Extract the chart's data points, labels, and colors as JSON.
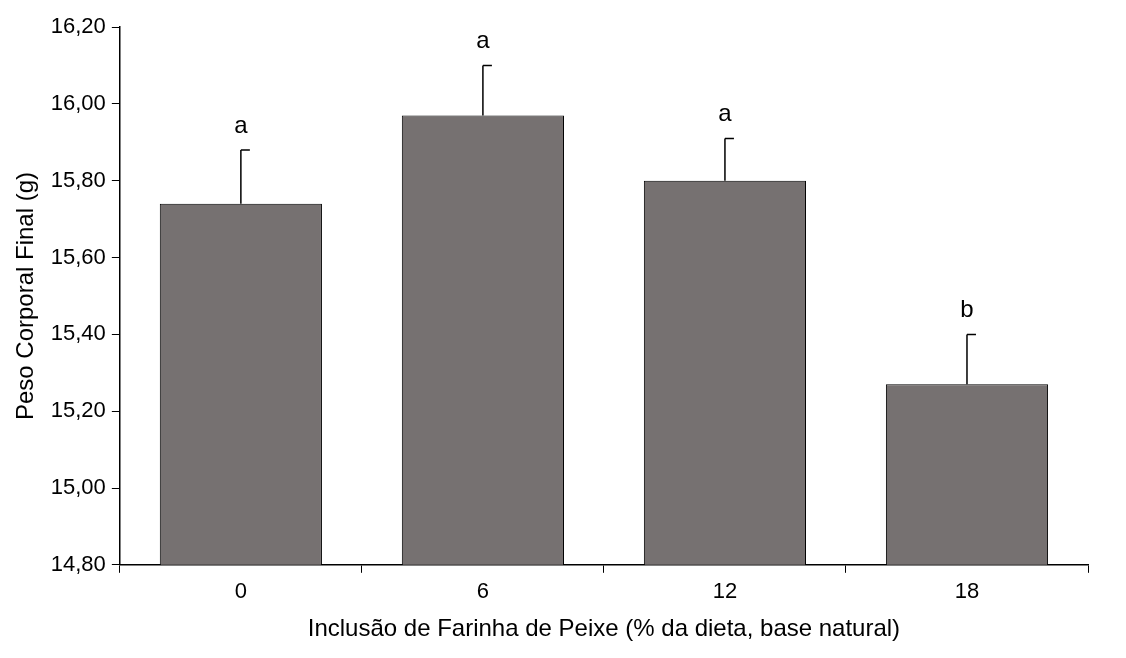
{
  "chart_data": {
    "type": "bar",
    "xlabel": "Inclusão de Farinha de Peixe (% da dieta, base natural)",
    "ylabel": "Peso Corporal Final (g)",
    "categories": [
      "0",
      "6",
      "12",
      "18"
    ],
    "values": [
      15.74,
      15.97,
      15.8,
      15.27
    ],
    "errors": [
      [
        15.74,
        15.88
      ],
      [
        15.97,
        16.1
      ],
      [
        15.8,
        15.91
      ],
      [
        15.27,
        15.4
      ]
    ],
    "color": "#767171",
    "ylim": [
      14.8,
      16.2
    ],
    "yticks": [
      {
        "value": 14.8,
        "label": "14,80"
      },
      {
        "value": 15.0,
        "label": "15,00"
      },
      {
        "value": 15.2,
        "label": "15,20"
      },
      {
        "value": 15.4,
        "label": "15,40"
      },
      {
        "value": 15.6,
        "label": "15,60"
      },
      {
        "value": 15.8,
        "label": "15,80"
      },
      {
        "value": 16.0,
        "label": "16,00"
      },
      {
        "value": 16.2,
        "label": "16,20"
      }
    ],
    "annotations": [
      {
        "text": "a",
        "x": "0",
        "y": 15.88
      },
      {
        "text": "a",
        "x": "6",
        "y": 16.1
      },
      {
        "text": "a",
        "x": "12",
        "y": 15.91
      },
      {
        "text": "b",
        "x": "18",
        "y": 15.4
      }
    ],
    "grid": false,
    "legend": false
  }
}
